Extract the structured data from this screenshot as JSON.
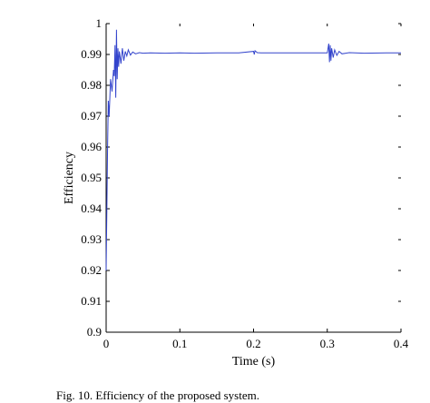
{
  "chart_data": {
    "type": "line",
    "xlabel": "Time (s)",
    "ylabel": "Efficiency",
    "xlim": [
      0,
      0.4
    ],
    "ylim": [
      0.9,
      1.0
    ],
    "xticks": [
      0,
      0.1,
      0.2,
      0.3,
      0.4
    ],
    "xtick_labels": [
      "0",
      "0.1",
      "0.2",
      "0.3",
      "0.4"
    ],
    "yticks": [
      0.9,
      0.91,
      0.92,
      0.93,
      0.94,
      0.95,
      0.96,
      0.97,
      0.98,
      0.99,
      1.0
    ],
    "ytick_labels": [
      "0.9",
      "0.91",
      "0.92",
      "0.93",
      "0.94",
      "0.95",
      "0.96",
      "0.97",
      "0.98",
      "0.99",
      "1"
    ],
    "grid": false,
    "legend": "none",
    "series": [
      {
        "color": "#3344cc",
        "x": [
          0,
          0.001,
          0.002,
          0.003,
          0.004,
          0.006,
          0.008,
          0.01,
          0.011,
          0.012,
          0.013,
          0.014,
          0.015,
          0.016,
          0.017,
          0.018,
          0.02,
          0.022,
          0.024,
          0.026,
          0.028,
          0.03,
          0.033,
          0.036,
          0.04,
          0.045,
          0.05,
          0.06,
          0.08,
          0.1,
          0.12,
          0.15,
          0.18,
          0.2,
          0.201,
          0.202,
          0.205,
          0.21,
          0.25,
          0.3,
          0.302,
          0.303,
          0.304,
          0.305,
          0.306,
          0.308,
          0.31,
          0.313,
          0.316,
          0.32,
          0.33,
          0.35,
          0.38,
          0.4
        ],
        "y": [
          0.92,
          0.94,
          0.96,
          0.975,
          0.97,
          0.982,
          0.978,
          0.985,
          0.983,
          0.993,
          0.976,
          0.998,
          0.982,
          0.992,
          0.986,
          0.991,
          0.987,
          0.992,
          0.988,
          0.991,
          0.9895,
          0.9915,
          0.9898,
          0.9908,
          0.9902,
          0.9906,
          0.9904,
          0.9905,
          0.9904,
          0.9905,
          0.9904,
          0.9905,
          0.9905,
          0.991,
          0.99,
          0.9912,
          0.9906,
          0.9905,
          0.9905,
          0.9905,
          0.9935,
          0.9875,
          0.993,
          0.988,
          0.992,
          0.989,
          0.9915,
          0.9897,
          0.991,
          0.9902,
          0.9906,
          0.9904,
          0.9905,
          0.9905
        ]
      }
    ]
  },
  "caption": "Fig. 10. Efficiency of the proposed system."
}
